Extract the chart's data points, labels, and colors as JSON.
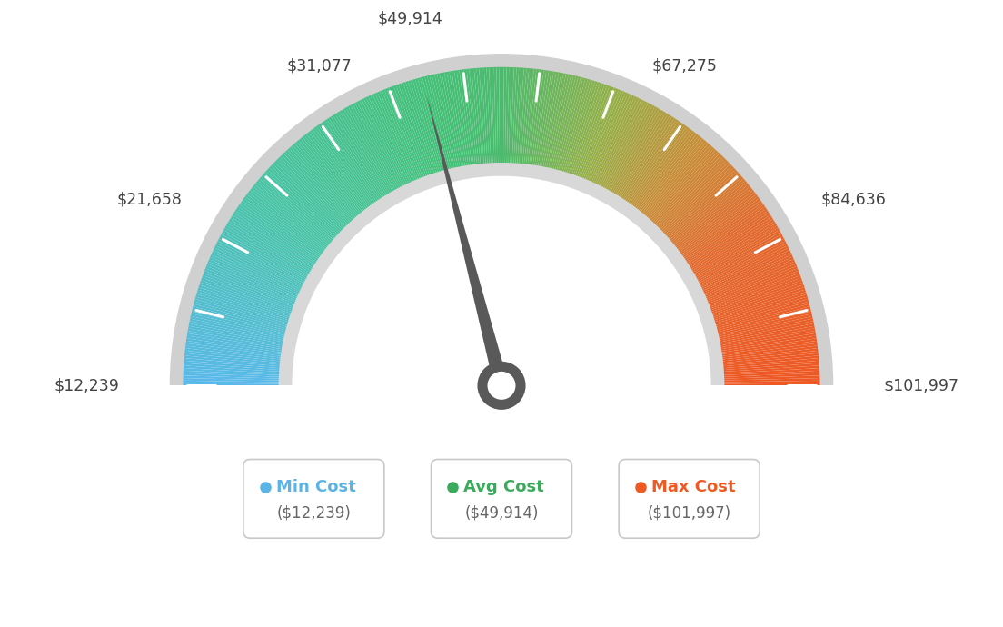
{
  "min_val": 12239,
  "max_val": 101997,
  "avg_val": 49914,
  "labels": {
    "min": "$12,239",
    "v2": "$21,658",
    "v3": "$31,077",
    "avg": "$49,914",
    "v5": "$67,275",
    "v6": "$84,636",
    "max": "$101,997"
  },
  "legend": [
    {
      "label": "Min Cost",
      "value": "($12,239)",
      "color": "#5ab4e5"
    },
    {
      "label": "Avg Cost",
      "value": "($49,914)",
      "color": "#3aaa5c"
    },
    {
      "label": "Max Cost",
      "value": "($101,997)",
      "color": "#ee5a24"
    }
  ],
  "color_stops": [
    [
      0.0,
      [
        90,
        185,
        234
      ]
    ],
    [
      0.2,
      [
        72,
        195,
        168
      ]
    ],
    [
      0.42,
      [
        68,
        192,
        120
      ]
    ],
    [
      0.5,
      [
        76,
        186,
        110
      ]
    ],
    [
      0.62,
      [
        150,
        175,
        72
      ]
    ],
    [
      0.72,
      [
        200,
        140,
        55
      ]
    ],
    [
      0.82,
      [
        225,
        105,
        45
      ]
    ],
    [
      1.0,
      [
        238,
        88,
        36
      ]
    ]
  ],
  "background_color": "#ffffff",
  "needle_color": "#595959",
  "tick_color": "#ffffff"
}
